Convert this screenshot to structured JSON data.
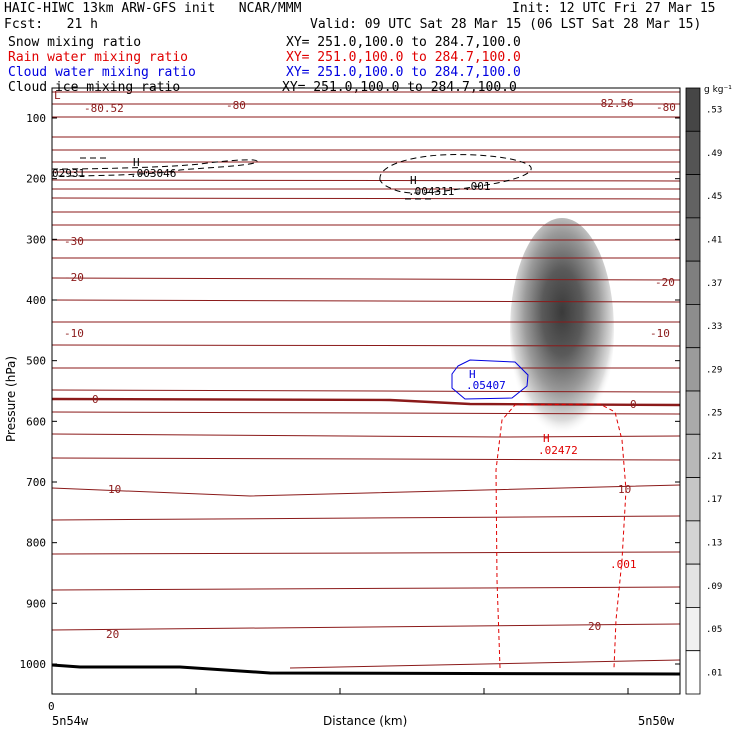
{
  "header": {
    "model_line": "HAIC-HIWC 13km ARW-GFS init   NCAR/MMM",
    "init_line": "Init: 12 UTC Fri 27 Mar 15",
    "fcst_line": "Fcst:   21 h",
    "valid_line": "Valid: 09 UTC Sat 28 Mar 15 (06 LST Sat 28 Mar 15)",
    "fields": [
      {
        "name": "Snow mixing ratio",
        "xy": "XY= 251.0,100.0 to 284.7,100.0",
        "color": "#000000"
      },
      {
        "name": "Rain water mixing ratio",
        "xy": "XY= 251.0,100.0 to 284.7,100.0",
        "color": "#e00000"
      },
      {
        "name": "Cloud water mixing ratio",
        "xy": "XY= 251.0,100.0 to 284.7,100.0",
        "color": "#0000e0"
      },
      {
        "name": "Cloud ice mixing ratio",
        "xy": "XY= 251.0,100.0 to 284.7,100.0",
        "color": "#000000"
      }
    ]
  },
  "chart_data": {
    "type": "contour cross-section",
    "xlabel": "Distance (km)",
    "ylabel": "Pressure (hPa)",
    "ylim": [
      1050,
      55
    ],
    "y_ticks": [
      100,
      200,
      300,
      400,
      500,
      600,
      700,
      800,
      900,
      1000
    ],
    "x_tick_label": "0",
    "x_left_label": "5n54w",
    "x_right_label": "5n50w",
    "colorbar": {
      "unit": "g kg⁻¹",
      "levels": [
        ".53",
        ".49",
        ".45",
        ".41",
        ".37",
        ".33",
        ".29",
        ".25",
        ".21",
        ".17",
        ".13",
        ".09",
        ".05",
        ".01"
      ]
    },
    "contour_labels": [
      {
        "text": "-80.52",
        "color": "#8b1a1a"
      },
      {
        "text": "-80",
        "color": "#8b1a1a"
      },
      {
        "text": "-82.56",
        "color": "#8b1a1a"
      },
      {
        "text": "-80",
        "color": "#8b1a1a"
      },
      {
        "text": "-30",
        "color": "#8b1a1a"
      },
      {
        "text": "-20",
        "color": "#8b1a1a"
      },
      {
        "text": "-20",
        "color": "#8b1a1a"
      },
      {
        "text": "-10",
        "color": "#8b1a1a"
      },
      {
        "text": "-10",
        "color": "#8b1a1a"
      },
      {
        "text": "0",
        "color": "#8b1a1a"
      },
      {
        "text": "0",
        "color": "#8b1a1a"
      },
      {
        "text": "10",
        "color": "#8b1a1a"
      },
      {
        "text": "10",
        "color": "#8b1a1a"
      },
      {
        "text": "20",
        "color": "#8b1a1a"
      },
      {
        "text": "20",
        "color": "#8b1a1a"
      }
    ],
    "extrema": [
      {
        "mark": "H",
        "value": ".003046",
        "color": "#000000"
      },
      {
        "mark": "",
        "value": "02931",
        "color": "#000000"
      },
      {
        "mark": "H",
        "value": ".004311",
        "color": "#000000"
      },
      {
        "mark": "",
        "value": ".001",
        "color": "#000000"
      },
      {
        "mark": "H",
        "value": ".05407",
        "color": "#0000e0"
      },
      {
        "mark": "H",
        "value": ".02472",
        "color": "#e00000"
      },
      {
        "mark": "",
        "value": ".001",
        "color": "#e00000"
      }
    ],
    "left_edge_label": "L"
  }
}
